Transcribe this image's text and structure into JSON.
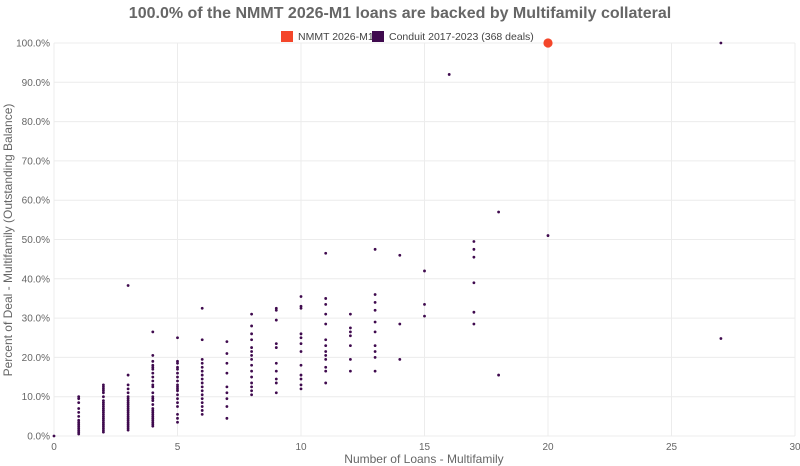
{
  "chart_data": {
    "type": "scatter",
    "title": "100.0% of the NMMT 2026-M1 loans are backed by Multifamily collateral",
    "xlabel": "Number of Loans - Multifamily",
    "ylabel": "Percent of Deal - Multifamily (Outstanding Balance)",
    "xlim": [
      0,
      30
    ],
    "ylim": [
      0,
      100
    ],
    "x_ticks": [
      "0",
      "5",
      "10",
      "15",
      "20",
      "25",
      "30"
    ],
    "y_ticks": [
      "0.0%",
      "10.0%",
      "20.0%",
      "30.0%",
      "40.0%",
      "50.0%",
      "60.0%",
      "70.0%",
      "80.0%",
      "90.0%",
      "100.0%"
    ],
    "grid": true,
    "legend_position": "top-center",
    "series": [
      {
        "name": "NMMT 2026-M1",
        "color": "#f4462a",
        "points": [
          [
            20,
            100.0
          ]
        ]
      },
      {
        "name": "Conduit 2017-2023 (368 deals)",
        "color": "#3f0a4e",
        "points": [
          [
            0,
            0.0
          ],
          [
            1,
            0.5
          ],
          [
            1,
            1.0
          ],
          [
            1,
            1.5
          ],
          [
            1,
            2.0
          ],
          [
            1,
            2.5
          ],
          [
            1,
            3.0
          ],
          [
            1,
            3.5
          ],
          [
            1,
            4.0
          ],
          [
            1,
            5.0
          ],
          [
            1,
            6.0
          ],
          [
            1,
            7.0
          ],
          [
            1,
            8.5
          ],
          [
            1,
            9.5
          ],
          [
            1,
            10.0
          ],
          [
            2,
            1.0
          ],
          [
            2,
            1.5
          ],
          [
            2,
            2.0
          ],
          [
            2,
            2.5
          ],
          [
            2,
            3.0
          ],
          [
            2,
            3.5
          ],
          [
            2,
            4.0
          ],
          [
            2,
            4.5
          ],
          [
            2,
            5.0
          ],
          [
            2,
            5.5
          ],
          [
            2,
            6.0
          ],
          [
            2,
            6.5
          ],
          [
            2,
            7.0
          ],
          [
            2,
            7.5
          ],
          [
            2,
            8.0
          ],
          [
            2,
            8.5
          ],
          [
            2,
            9.0
          ],
          [
            2,
            10.0
          ],
          [
            2,
            11.0
          ],
          [
            2,
            11.5
          ],
          [
            2,
            12.0
          ],
          [
            2,
            12.5
          ],
          [
            2,
            13.0
          ],
          [
            3,
            1.5
          ],
          [
            3,
            2.0
          ],
          [
            3,
            2.5
          ],
          [
            3,
            3.0
          ],
          [
            3,
            3.5
          ],
          [
            3,
            4.0
          ],
          [
            3,
            4.5
          ],
          [
            3,
            5.0
          ],
          [
            3,
            5.5
          ],
          [
            3,
            6.0
          ],
          [
            3,
            6.5
          ],
          [
            3,
            7.0
          ],
          [
            3,
            7.5
          ],
          [
            3,
            8.0
          ],
          [
            3,
            8.5
          ],
          [
            3,
            9.0
          ],
          [
            3,
            9.5
          ],
          [
            3,
            10.0
          ],
          [
            3,
            11.0
          ],
          [
            3,
            12.0
          ],
          [
            3,
            13.0
          ],
          [
            3,
            15.5
          ],
          [
            3,
            38.3
          ],
          [
            4,
            2.5
          ],
          [
            4,
            3.0
          ],
          [
            4,
            3.5
          ],
          [
            4,
            4.0
          ],
          [
            4,
            4.5
          ],
          [
            4,
            5.0
          ],
          [
            4,
            5.5
          ],
          [
            4,
            6.0
          ],
          [
            4,
            6.5
          ],
          [
            4,
            7.0
          ],
          [
            4,
            8.0
          ],
          [
            4,
            9.0
          ],
          [
            4,
            9.5
          ],
          [
            4,
            10.0
          ],
          [
            4,
            11.0
          ],
          [
            4,
            12.5
          ],
          [
            4,
            13.0
          ],
          [
            4,
            14.0
          ],
          [
            4,
            15.0
          ],
          [
            4,
            16.0
          ],
          [
            4,
            17.0
          ],
          [
            4,
            17.5
          ],
          [
            4,
            18.0
          ],
          [
            4,
            19.0
          ],
          [
            4,
            20.5
          ],
          [
            4,
            26.5
          ],
          [
            5,
            3.5
          ],
          [
            5,
            4.5
          ],
          [
            5,
            5.5
          ],
          [
            5,
            7.5
          ],
          [
            5,
            8.5
          ],
          [
            5,
            9.5
          ],
          [
            5,
            10.5
          ],
          [
            5,
            11.5
          ],
          [
            5,
            12.0
          ],
          [
            5,
            12.5
          ],
          [
            5,
            13.0
          ],
          [
            5,
            14.0
          ],
          [
            5,
            15.0
          ],
          [
            5,
            16.0
          ],
          [
            5,
            17.0
          ],
          [
            5,
            17.5
          ],
          [
            5,
            18.5
          ],
          [
            5,
            19.0
          ],
          [
            5,
            25.0
          ],
          [
            6,
            5.5
          ],
          [
            6,
            6.5
          ],
          [
            6,
            7.5
          ],
          [
            6,
            8.5
          ],
          [
            6,
            9.5
          ],
          [
            6,
            10.5
          ],
          [
            6,
            11.5
          ],
          [
            6,
            12.5
          ],
          [
            6,
            13.5
          ],
          [
            6,
            14.5
          ],
          [
            6,
            15.5
          ],
          [
            6,
            16.5
          ],
          [
            6,
            17.5
          ],
          [
            6,
            18.5
          ],
          [
            6,
            19.5
          ],
          [
            6,
            24.5
          ],
          [
            6,
            32.5
          ],
          [
            7,
            4.5
          ],
          [
            7,
            7.5
          ],
          [
            7,
            9.5
          ],
          [
            7,
            11.0
          ],
          [
            7,
            12.5
          ],
          [
            7,
            16.0
          ],
          [
            7,
            18.5
          ],
          [
            7,
            21.0
          ],
          [
            7,
            24.0
          ],
          [
            8,
            10.5
          ],
          [
            8,
            11.5
          ],
          [
            8,
            12.5
          ],
          [
            8,
            13.5
          ],
          [
            8,
            15.0
          ],
          [
            8,
            16.5
          ],
          [
            8,
            18.0
          ],
          [
            8,
            19.5
          ],
          [
            8,
            20.5
          ],
          [
            8,
            21.5
          ],
          [
            8,
            22.5
          ],
          [
            8,
            24.5
          ],
          [
            8,
            26.0
          ],
          [
            8,
            28.0
          ],
          [
            8,
            31.0
          ],
          [
            9,
            11.0
          ],
          [
            9,
            13.5
          ],
          [
            9,
            14.5
          ],
          [
            9,
            16.5
          ],
          [
            9,
            18.5
          ],
          [
            9,
            22.5
          ],
          [
            9,
            23.5
          ],
          [
            9,
            29.5
          ],
          [
            9,
            32.0
          ],
          [
            9,
            32.5
          ],
          [
            10,
            12.0
          ],
          [
            10,
            13.0
          ],
          [
            10,
            14.5
          ],
          [
            10,
            15.5
          ],
          [
            10,
            18.0
          ],
          [
            10,
            21.5
          ],
          [
            10,
            23.5
          ],
          [
            10,
            25.0
          ],
          [
            10,
            26.0
          ],
          [
            10,
            32.5
          ],
          [
            10,
            33.0
          ],
          [
            10,
            35.5
          ],
          [
            11,
            13.5
          ],
          [
            11,
            16.5
          ],
          [
            11,
            17.5
          ],
          [
            11,
            19.5
          ],
          [
            11,
            20.5
          ],
          [
            11,
            21.5
          ],
          [
            11,
            23.0
          ],
          [
            11,
            24.5
          ],
          [
            11,
            28.5
          ],
          [
            11,
            31.0
          ],
          [
            11,
            33.5
          ],
          [
            11,
            35.0
          ],
          [
            11,
            46.5
          ],
          [
            12,
            16.5
          ],
          [
            12,
            19.5
          ],
          [
            12,
            23.0
          ],
          [
            12,
            25.5
          ],
          [
            12,
            26.5
          ],
          [
            12,
            27.5
          ],
          [
            12,
            31.0
          ],
          [
            13,
            16.5
          ],
          [
            13,
            20.0
          ],
          [
            13,
            21.5
          ],
          [
            13,
            23.0
          ],
          [
            13,
            26.5
          ],
          [
            13,
            29.0
          ],
          [
            13,
            32.0
          ],
          [
            13,
            34.0
          ],
          [
            13,
            36.0
          ],
          [
            13,
            47.5
          ],
          [
            14,
            19.5
          ],
          [
            14,
            28.5
          ],
          [
            14,
            46.0
          ],
          [
            15,
            30.5
          ],
          [
            15,
            33.5
          ],
          [
            15,
            42.0
          ],
          [
            16,
            92.0
          ],
          [
            17,
            28.5
          ],
          [
            17,
            31.5
          ],
          [
            17,
            39.0
          ],
          [
            17,
            45.5
          ],
          [
            17,
            47.5
          ],
          [
            17,
            49.5
          ],
          [
            18,
            15.5
          ],
          [
            18,
            57.0
          ],
          [
            20,
            51.0
          ],
          [
            27,
            24.8
          ],
          [
            27,
            100.0
          ]
        ]
      }
    ]
  }
}
